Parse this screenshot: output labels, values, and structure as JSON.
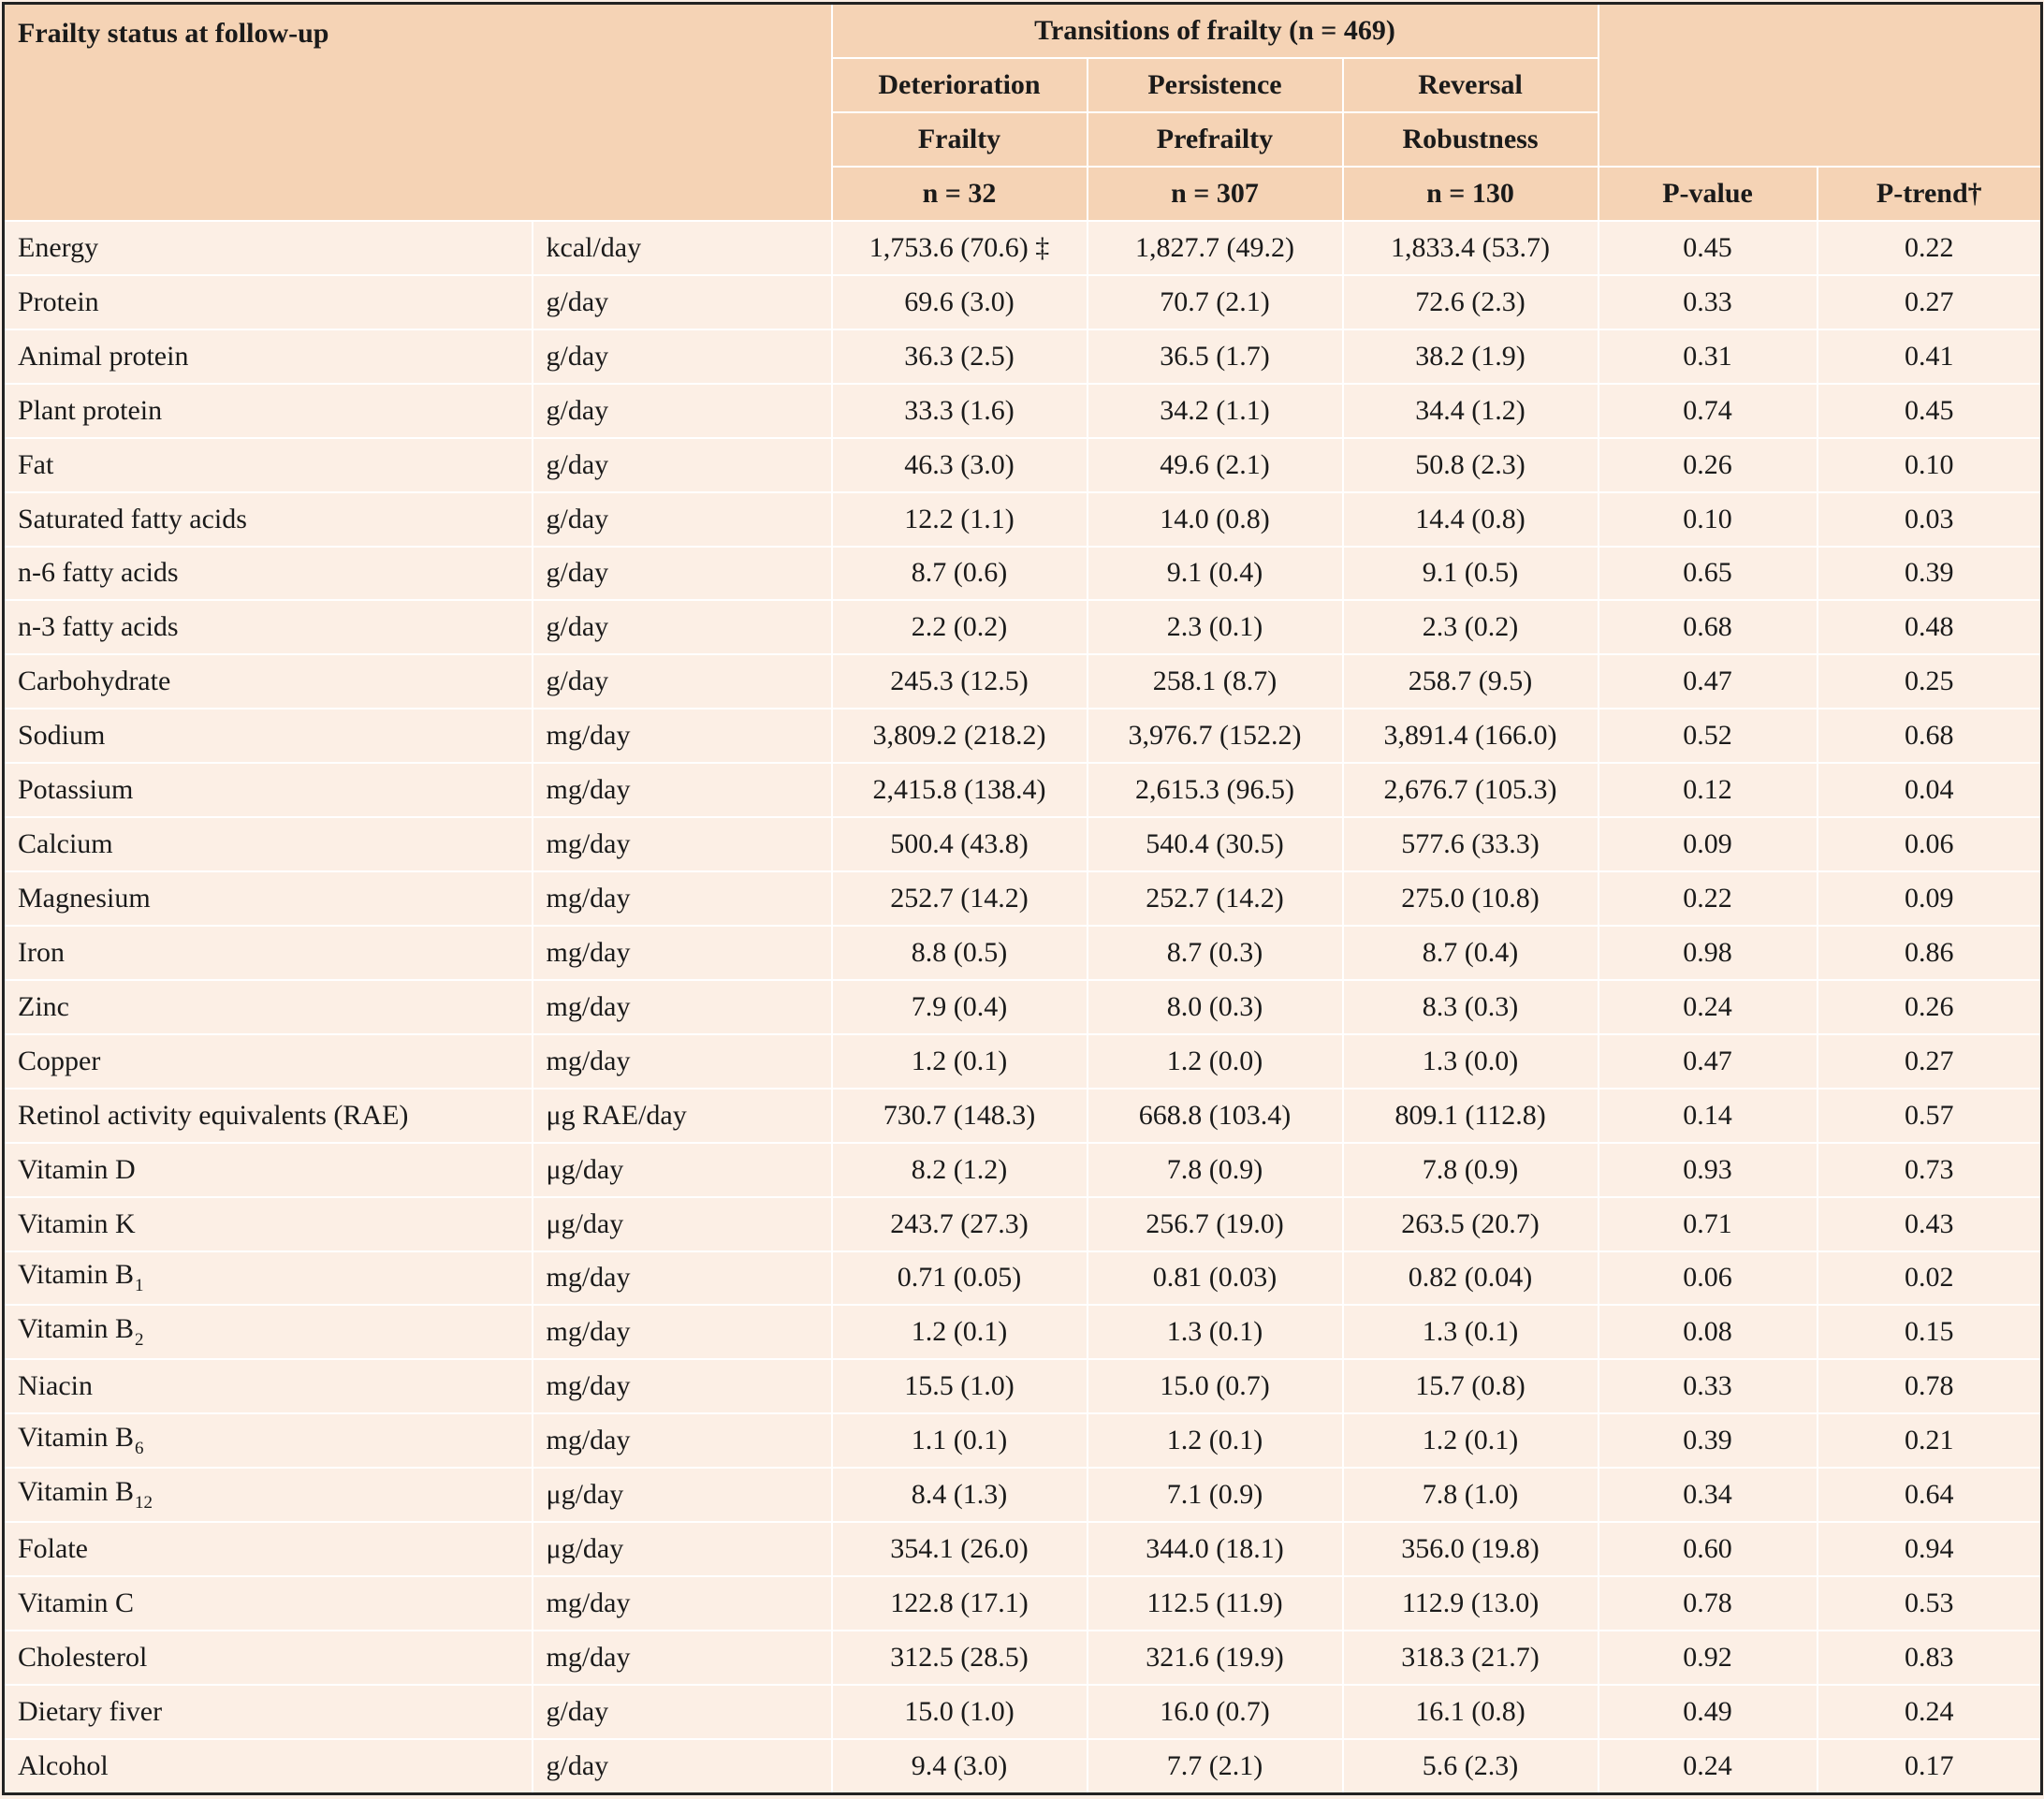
{
  "header": {
    "corner": "Frailty status at follow-up",
    "transitions": "Transitions of frailty (n = 469)",
    "groups": [
      {
        "transition": "Deterioration",
        "status": "Frailty",
        "n": "n = 32"
      },
      {
        "transition": "Persistence",
        "status": "Prefrailty",
        "n": "n = 307"
      },
      {
        "transition": "Reversal",
        "status": "Robustness",
        "n": "n = 130"
      }
    ],
    "p_value": "P-value",
    "p_trend": "P-trend†"
  },
  "rows": [
    {
      "nutrient": "Energy",
      "sub": "",
      "unit": "kcal/day",
      "frailty": "1,753.6 (70.6) ‡",
      "prefrailty": "1,827.7 (49.2)",
      "robustness": "1,833.4 (53.7)",
      "p": "0.45",
      "ptrend": "0.22"
    },
    {
      "nutrient": "Protein",
      "sub": "",
      "unit": "g/day",
      "frailty": "69.6 (3.0)",
      "prefrailty": "70.7 (2.1)",
      "robustness": "72.6 (2.3)",
      "p": "0.33",
      "ptrend": "0.27"
    },
    {
      "nutrient": "Animal protein",
      "sub": "",
      "unit": "g/day",
      "frailty": "36.3 (2.5)",
      "prefrailty": "36.5 (1.7)",
      "robustness": "38.2 (1.9)",
      "p": "0.31",
      "ptrend": "0.41"
    },
    {
      "nutrient": "Plant protein",
      "sub": "",
      "unit": "g/day",
      "frailty": "33.3 (1.6)",
      "prefrailty": "34.2 (1.1)",
      "robustness": "34.4 (1.2)",
      "p": "0.74",
      "ptrend": "0.45"
    },
    {
      "nutrient": "Fat",
      "sub": "",
      "unit": "g/day",
      "frailty": "46.3 (3.0)",
      "prefrailty": "49.6 (2.1)",
      "robustness": "50.8 (2.3)",
      "p": "0.26",
      "ptrend": "0.10"
    },
    {
      "nutrient": "Saturated fatty acids",
      "sub": "",
      "unit": "g/day",
      "frailty": "12.2 (1.1)",
      "prefrailty": "14.0 (0.8)",
      "robustness": "14.4 (0.8)",
      "p": "0.10",
      "ptrend": "0.03"
    },
    {
      "nutrient": "n-6 fatty acids",
      "sub": "",
      "unit": "g/day",
      "frailty": "8.7 (0.6)",
      "prefrailty": "9.1 (0.4)",
      "robustness": "9.1 (0.5)",
      "p": "0.65",
      "ptrend": "0.39"
    },
    {
      "nutrient": "n-3 fatty acids",
      "sub": "",
      "unit": "g/day",
      "frailty": "2.2 (0.2)",
      "prefrailty": "2.3 (0.1)",
      "robustness": "2.3 (0.2)",
      "p": "0.68",
      "ptrend": "0.48"
    },
    {
      "nutrient": "Carbohydrate",
      "sub": "",
      "unit": "g/day",
      "frailty": "245.3 (12.5)",
      "prefrailty": "258.1 (8.7)",
      "robustness": "258.7 (9.5)",
      "p": "0.47",
      "ptrend": "0.25"
    },
    {
      "nutrient": "Sodium",
      "sub": "",
      "unit": "mg/day",
      "frailty": "3,809.2 (218.2)",
      "prefrailty": "3,976.7 (152.2)",
      "robustness": "3,891.4 (166.0)",
      "p": "0.52",
      "ptrend": "0.68"
    },
    {
      "nutrient": "Potassium",
      "sub": "",
      "unit": "mg/day",
      "frailty": "2,415.8 (138.4)",
      "prefrailty": "2,615.3 (96.5)",
      "robustness": "2,676.7 (105.3)",
      "p": "0.12",
      "ptrend": "0.04"
    },
    {
      "nutrient": "Calcium",
      "sub": "",
      "unit": "mg/day",
      "frailty": "500.4 (43.8)",
      "prefrailty": "540.4 (30.5)",
      "robustness": "577.6 (33.3)",
      "p": "0.09",
      "ptrend": "0.06"
    },
    {
      "nutrient": "Magnesium",
      "sub": "",
      "unit": "mg/day",
      "frailty": "252.7 (14.2)",
      "prefrailty": "252.7 (14.2)",
      "robustness": "275.0 (10.8)",
      "p": "0.22",
      "ptrend": "0.09"
    },
    {
      "nutrient": "Iron",
      "sub": "",
      "unit": "mg/day",
      "frailty": "8.8 (0.5)",
      "prefrailty": "8.7 (0.3)",
      "robustness": "8.7 (0.4)",
      "p": "0.98",
      "ptrend": "0.86"
    },
    {
      "nutrient": "Zinc",
      "sub": "",
      "unit": "mg/day",
      "frailty": "7.9 (0.4)",
      "prefrailty": "8.0 (0.3)",
      "robustness": "8.3 (0.3)",
      "p": "0.24",
      "ptrend": "0.26"
    },
    {
      "nutrient": "Copper",
      "sub": "",
      "unit": "mg/day",
      "frailty": "1.2 (0.1)",
      "prefrailty": "1.2 (0.0)",
      "robustness": "1.3 (0.0)",
      "p": "0.47",
      "ptrend": "0.27"
    },
    {
      "nutrient": "Retinol activity equivalents (RAE)",
      "sub": "",
      "unit": "μg RAE/day",
      "frailty": "730.7 (148.3)",
      "prefrailty": "668.8 (103.4)",
      "robustness": "809.1 (112.8)",
      "p": "0.14",
      "ptrend": "0.57"
    },
    {
      "nutrient": "Vitamin D",
      "sub": "",
      "unit": "μg/day",
      "frailty": "8.2 (1.2)",
      "prefrailty": "7.8 (0.9)",
      "robustness": "7.8 (0.9)",
      "p": "0.93",
      "ptrend": "0.73"
    },
    {
      "nutrient": "Vitamin K",
      "sub": "",
      "unit": "μg/day",
      "frailty": "243.7 (27.3)",
      "prefrailty": "256.7 (19.0)",
      "robustness": "263.5 (20.7)",
      "p": "0.71",
      "ptrend": "0.43"
    },
    {
      "nutrient": "Vitamin B",
      "sub": "1",
      "unit": "mg/day",
      "frailty": "0.71 (0.05)",
      "prefrailty": "0.81 (0.03)",
      "robustness": "0.82 (0.04)",
      "p": "0.06",
      "ptrend": "0.02"
    },
    {
      "nutrient": "Vitamin B",
      "sub": "2",
      "unit": "mg/day",
      "frailty": "1.2 (0.1)",
      "prefrailty": "1.3 (0.1)",
      "robustness": "1.3 (0.1)",
      "p": "0.08",
      "ptrend": "0.15"
    },
    {
      "nutrient": "Niacin",
      "sub": "",
      "unit": "mg/day",
      "frailty": "15.5 (1.0)",
      "prefrailty": "15.0 (0.7)",
      "robustness": "15.7 (0.8)",
      "p": "0.33",
      "ptrend": "0.78"
    },
    {
      "nutrient": "Vitamin B",
      "sub": "6",
      "unit": "mg/day",
      "frailty": "1.1 (0.1)",
      "prefrailty": "1.2 (0.1)",
      "robustness": "1.2 (0.1)",
      "p": "0.39",
      "ptrend": "0.21"
    },
    {
      "nutrient": "Vitamin B",
      "sub": "12",
      "unit": "μg/day",
      "frailty": "8.4 (1.3)",
      "prefrailty": "7.1 (0.9)",
      "robustness": "7.8 (1.0)",
      "p": "0.34",
      "ptrend": "0.64"
    },
    {
      "nutrient": "Folate",
      "sub": "",
      "unit": "μg/day",
      "frailty": "354.1 (26.0)",
      "prefrailty": "344.0 (18.1)",
      "robustness": "356.0 (19.8)",
      "p": "0.60",
      "ptrend": "0.94"
    },
    {
      "nutrient": "Vitamin C",
      "sub": "",
      "unit": "mg/day",
      "frailty": "122.8 (17.1)",
      "prefrailty": "112.5 (11.9)",
      "robustness": "112.9 (13.0)",
      "p": "0.78",
      "ptrend": "0.53"
    },
    {
      "nutrient": "Cholesterol",
      "sub": "",
      "unit": "mg/day",
      "frailty": "312.5 (28.5)",
      "prefrailty": "321.6 (19.9)",
      "robustness": "318.3 (21.7)",
      "p": "0.92",
      "ptrend": "0.83"
    },
    {
      "nutrient": "Dietary fiver",
      "sub": "",
      "unit": "g/day",
      "frailty": "15.0 (1.0)",
      "prefrailty": "16.0 (0.7)",
      "robustness": "16.1 (0.8)",
      "p": "0.49",
      "ptrend": "0.24"
    },
    {
      "nutrient": "Alcohol",
      "sub": "",
      "unit": "g/day",
      "frailty": "9.4 (3.0)",
      "prefrailty": "7.7 (2.1)",
      "robustness": "5.6 (2.3)",
      "p": "0.24",
      "ptrend": "0.17"
    }
  ]
}
